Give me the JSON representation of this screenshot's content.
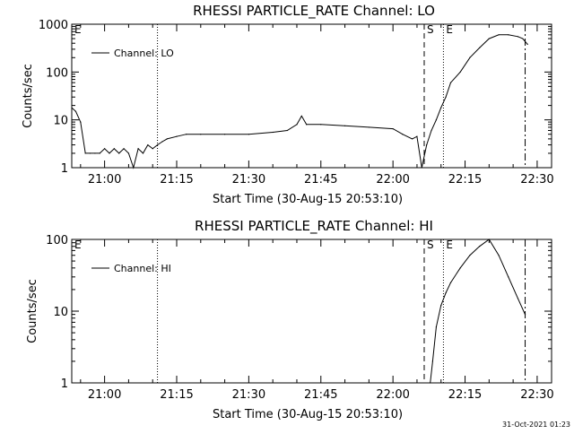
{
  "chart_data": [
    {
      "type": "line",
      "title": "RHESSI PARTICLE_RATE Channel: LO",
      "xlabel": "Start Time (30-Aug-15 20:53:10)",
      "ylabel": "Counts/sec",
      "yscale": "log",
      "xlim": [
        "20:53:10",
        "22:33:00"
      ],
      "ylim": [
        1,
        1000
      ],
      "xticks": [
        "21:00",
        "21:15",
        "21:30",
        "21:45",
        "22:00",
        "22:15",
        "22:30"
      ],
      "yticks": [
        "1",
        "10",
        "100",
        "1000"
      ],
      "legend": "top-left",
      "series": [
        {
          "name": "Channel: LO",
          "x": [
            "20:53:10",
            "20:54:00",
            "20:55:00",
            "20:56:00",
            "20:57:00",
            "20:58:00",
            "20:59:00",
            "21:00:00",
            "21:01:00",
            "21:02:00",
            "21:03:00",
            "21:04:00",
            "21:05:00",
            "21:06:00",
            "21:07:00",
            "21:08:00",
            "21:09:00",
            "21:10:00",
            "21:11:00",
            "21:12:00",
            "21:13:00",
            "21:15:00",
            "21:17:00",
            "21:20:00",
            "21:25:00",
            "21:30:00",
            "21:35:00",
            "21:38:00",
            "21:40:00",
            "21:41:00",
            "21:42:00",
            "21:45:00",
            "21:50:00",
            "21:55:00",
            "22:00:00",
            "22:02:00",
            "22:04:00",
            "22:05:00",
            "22:06:00",
            "22:07:00",
            "22:08:00",
            "22:09:00",
            "22:10:00",
            "22:11:00",
            "22:12:00",
            "22:14:00",
            "22:16:00",
            "22:18:00",
            "22:20:00",
            "22:22:00",
            "22:24:00",
            "22:26:00",
            "22:27:00",
            "22:28:00"
          ],
          "y": [
            18,
            15,
            9,
            2,
            2,
            2,
            2,
            2.5,
            2,
            2.5,
            2,
            2.5,
            2,
            1,
            2.5,
            2,
            3,
            2.5,
            3,
            3.5,
            4,
            4.5,
            5,
            5,
            5,
            5,
            5.5,
            6,
            8,
            12,
            8,
            8,
            7.5,
            7,
            6.5,
            5,
            4,
            4.5,
            1,
            3,
            6,
            10,
            18,
            30,
            60,
            100,
            200,
            320,
            500,
            600,
            600,
            550,
            500,
            380
          ],
          "color": "#000000"
        }
      ],
      "markers": [
        {
          "label": "E",
          "time": "20:53:10",
          "style": "solid"
        },
        {
          "label": "",
          "time": "21:11:00",
          "style": "dotted"
        },
        {
          "label": "S",
          "time": "22:06:30",
          "style": "dashed"
        },
        {
          "label": "E",
          "time": "22:10:30",
          "style": "dotted"
        },
        {
          "label": "",
          "time": "22:27:30",
          "style": "dashdot"
        }
      ]
    },
    {
      "type": "line",
      "title": "RHESSI PARTICLE_RATE Channel: HI",
      "xlabel": "Start Time (30-Aug-15 20:53:10)",
      "ylabel": "Counts/sec",
      "yscale": "log",
      "xlim": [
        "20:53:10",
        "22:33:00"
      ],
      "ylim": [
        1,
        100
      ],
      "xticks": [
        "21:00",
        "21:15",
        "21:30",
        "21:45",
        "22:00",
        "22:15",
        "22:30"
      ],
      "yticks": [
        "1",
        "10",
        "100"
      ],
      "legend": "top-left",
      "series": [
        {
          "name": "Channel: HI",
          "x": [
            "22:07:45",
            "22:08:15",
            "22:09:00",
            "22:10:00",
            "22:11:00",
            "22:12:00",
            "22:14:00",
            "22:16:00",
            "22:18:00",
            "22:20:00",
            "22:22:00",
            "22:24:00",
            "22:26:00",
            "22:27:30"
          ],
          "y": [
            1,
            2,
            6,
            12,
            18,
            25,
            40,
            60,
            80,
            100,
            60,
            30,
            15,
            9
          ],
          "color": "#000000"
        }
      ],
      "markers": [
        {
          "label": "E",
          "time": "20:53:10",
          "style": "solid"
        },
        {
          "label": "",
          "time": "21:11:00",
          "style": "dotted"
        },
        {
          "label": "S",
          "time": "22:06:30",
          "style": "dashed"
        },
        {
          "label": "E",
          "time": "22:10:30",
          "style": "dotted"
        },
        {
          "label": "",
          "time": "22:27:30",
          "style": "dashdot"
        }
      ]
    }
  ],
  "footer": {
    "timestamp": "31-Oct-2021 01:23"
  }
}
